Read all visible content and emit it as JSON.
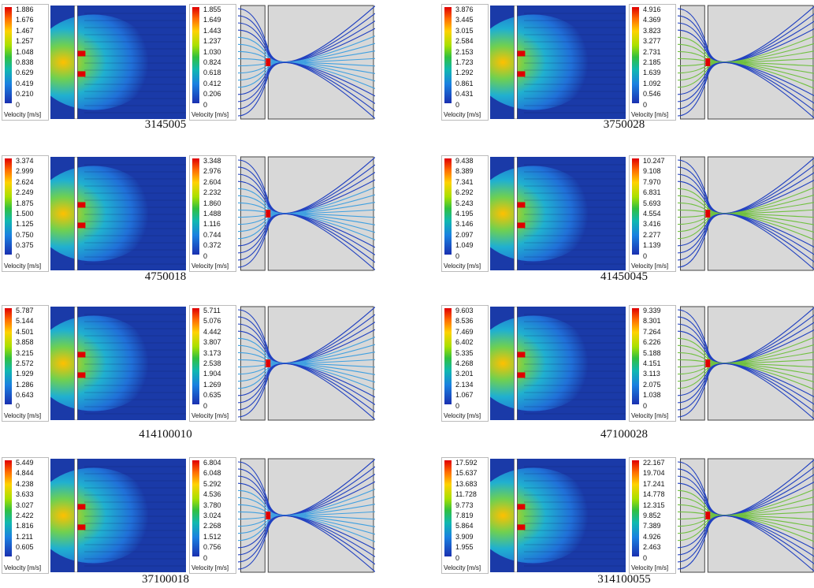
{
  "unit_label": "Velocity [m/s]",
  "cases": [
    {
      "label": "3145005",
      "left_ticks": [
        "1.886",
        "1.676",
        "1.467",
        "1.257",
        "1.048",
        "0.838",
        "0.629",
        "0.419",
        "0.210",
        "0"
      ],
      "right_ticks": [
        "1.855",
        "1.649",
        "1.443",
        "1.237",
        "1.030",
        "0.824",
        "0.618",
        "0.412",
        "0.206",
        "0"
      ]
    },
    {
      "label": "3750028",
      "left_ticks": [
        "3.876",
        "3.445",
        "3.015",
        "2.584",
        "2.153",
        "1.723",
        "1.292",
        "0.861",
        "0.431",
        "0"
      ],
      "right_ticks": [
        "4.916",
        "4.369",
        "3.823",
        "3.277",
        "2.731",
        "2.185",
        "1.639",
        "1.092",
        "0.546",
        "0"
      ]
    },
    {
      "label": "4750018",
      "left_ticks": [
        "3.374",
        "2.999",
        "2.624",
        "2.249",
        "1.875",
        "1.500",
        "1.125",
        "0.750",
        "0.375",
        "0"
      ],
      "right_ticks": [
        "3.348",
        "2.976",
        "2.604",
        "2.232",
        "1.860",
        "1.488",
        "1.116",
        "0.744",
        "0.372",
        "0"
      ]
    },
    {
      "label": "41450045",
      "left_ticks": [
        "9.438",
        "8.389",
        "7.341",
        "6.292",
        "5.243",
        "4.195",
        "3.146",
        "2.097",
        "1.049",
        "0"
      ],
      "right_ticks": [
        "10.247",
        "9.108",
        "7.970",
        "6.831",
        "5.693",
        "4.554",
        "3.416",
        "2.277",
        "1.139",
        "0"
      ]
    },
    {
      "label": "414100010",
      "left_ticks": [
        "5.787",
        "5.144",
        "4.501",
        "3.858",
        "3.215",
        "2.572",
        "1.929",
        "1.286",
        "0.643",
        "0"
      ],
      "right_ticks": [
        "5.711",
        "5.076",
        "4.442",
        "3.807",
        "3.173",
        "2.538",
        "1.904",
        "1.269",
        "0.635",
        "0"
      ]
    },
    {
      "label": "47100028",
      "left_ticks": [
        "9.603",
        "8.536",
        "7.469",
        "6.402",
        "5.335",
        "4.268",
        "3.201",
        "2.134",
        "1.067",
        "0"
      ],
      "right_ticks": [
        "9.339",
        "8.301",
        "7.264",
        "6.226",
        "5.188",
        "4.151",
        "3.113",
        "2.075",
        "1.038",
        "0"
      ]
    },
    {
      "label": "37100018",
      "left_ticks": [
        "5.449",
        "4.844",
        "4.238",
        "3.633",
        "3.027",
        "2.422",
        "1.816",
        "1.211",
        "0.605",
        "0"
      ],
      "right_ticks": [
        "6.804",
        "6.048",
        "5.292",
        "4.536",
        "3.780",
        "3.024",
        "2.268",
        "1.512",
        "0.756",
        "0"
      ]
    },
    {
      "label": "314100055",
      "left_ticks": [
        "17.592",
        "15.637",
        "13.683",
        "11.728",
        "9.773",
        "7.819",
        "5.864",
        "3.909",
        "1.955",
        "0"
      ],
      "right_ticks": [
        "22.167",
        "19.704",
        "17.241",
        "14.778",
        "12.315",
        "9.852",
        "7.389",
        "4.926",
        "2.463",
        "0"
      ]
    }
  ],
  "colors": {
    "low": "#1a30b0",
    "mid": "#30c040",
    "high": "#e00000"
  }
}
